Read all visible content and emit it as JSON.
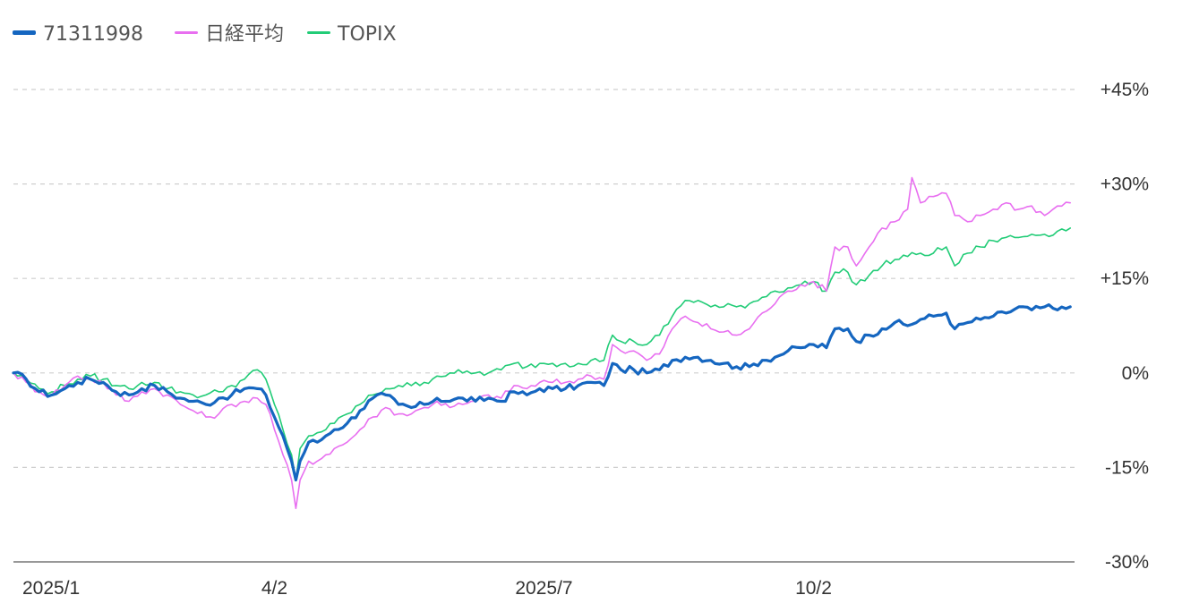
{
  "chart_data": {
    "type": "line",
    "title": "",
    "xlabel": "",
    "ylabel": "",
    "x_ticks": [
      {
        "label": "2025/1",
        "x": 0
      },
      {
        "label": "4/2",
        "x": 61
      },
      {
        "label": "2025/7",
        "x": 124
      },
      {
        "label": "10/2",
        "x": 187
      }
    ],
    "x_range": [
      0,
      248
    ],
    "y_ticks": [
      {
        "label": "+45%",
        "value": 45
      },
      {
        "label": "+30%",
        "value": 30
      },
      {
        "label": "+15%",
        "value": 15
      },
      {
        "label": "0%",
        "value": 0
      },
      {
        "label": "-15%",
        "value": -15
      },
      {
        "label": "-30%",
        "value": -30
      }
    ],
    "ylim": [
      -30,
      45
    ],
    "grid": true,
    "legend_position": "top-left",
    "series": [
      {
        "name": "71311998",
        "color": "#1566c0",
        "keypoints": [
          [
            0,
            0
          ],
          [
            3,
            -1
          ],
          [
            6,
            -3
          ],
          [
            9,
            -3.5
          ],
          [
            12,
            -2.5
          ],
          [
            15,
            -1.5
          ],
          [
            18,
            -1
          ],
          [
            21,
            -1.5
          ],
          [
            24,
            -3
          ],
          [
            27,
            -3.5
          ],
          [
            30,
            -2.5
          ],
          [
            33,
            -2
          ],
          [
            36,
            -3
          ],
          [
            39,
            -4
          ],
          [
            42,
            -4.5
          ],
          [
            45,
            -5
          ],
          [
            48,
            -4
          ],
          [
            51,
            -3.5
          ],
          [
            54,
            -2.5
          ],
          [
            57,
            -2.5
          ],
          [
            59,
            -3.5
          ],
          [
            61,
            -7
          ],
          [
            63,
            -10
          ],
          [
            65,
            -14
          ],
          [
            66,
            -17
          ],
          [
            67,
            -14
          ],
          [
            69,
            -11
          ],
          [
            71,
            -11
          ],
          [
            73,
            -10
          ],
          [
            75,
            -9
          ],
          [
            78,
            -8
          ],
          [
            81,
            -6
          ],
          [
            84,
            -4
          ],
          [
            87,
            -3.5
          ],
          [
            90,
            -5
          ],
          [
            93,
            -5.5
          ],
          [
            96,
            -5
          ],
          [
            99,
            -4
          ],
          [
            102,
            -4.5
          ],
          [
            105,
            -4
          ],
          [
            108,
            -4.5
          ],
          [
            111,
            -4
          ],
          [
            114,
            -4.5
          ],
          [
            117,
            -3
          ],
          [
            120,
            -3.5
          ],
          [
            123,
            -2.5
          ],
          [
            126,
            -2.5
          ],
          [
            129,
            -2.5
          ],
          [
            132,
            -2
          ],
          [
            135,
            -1.5
          ],
          [
            138,
            -2
          ],
          [
            140,
            1.5
          ],
          [
            142,
            0.5
          ],
          [
            145,
            0.5
          ],
          [
            148,
            0
          ],
          [
            151,
            0.5
          ],
          [
            154,
            2
          ],
          [
            157,
            2.5
          ],
          [
            160,
            2.5
          ],
          [
            163,
            2
          ],
          [
            166,
            1.5
          ],
          [
            169,
            1
          ],
          [
            172,
            1
          ],
          [
            175,
            2
          ],
          [
            178,
            2.5
          ],
          [
            181,
            3.5
          ],
          [
            184,
            4
          ],
          [
            187,
            4.5
          ],
          [
            190,
            4
          ],
          [
            192,
            7
          ],
          [
            195,
            7
          ],
          [
            197,
            5
          ],
          [
            200,
            6
          ],
          [
            203,
            7
          ],
          [
            206,
            8
          ],
          [
            209,
            7.5
          ],
          [
            212,
            8.5
          ],
          [
            215,
            9
          ],
          [
            218,
            9.5
          ],
          [
            220,
            7
          ],
          [
            223,
            8
          ],
          [
            226,
            8.5
          ],
          [
            229,
            9
          ],
          [
            232,
            9.5
          ],
          [
            235,
            10.5
          ],
          [
            238,
            10
          ],
          [
            241,
            10.5
          ],
          [
            244,
            10
          ],
          [
            247,
            10.5
          ]
        ]
      },
      {
        "name": "日経平均",
        "color": "#e86ff0",
        "keypoints": [
          [
            0,
            0
          ],
          [
            3,
            -1.5
          ],
          [
            6,
            -3
          ],
          [
            9,
            -3.5
          ],
          [
            12,
            -2
          ],
          [
            15,
            -0.5
          ],
          [
            18,
            -1
          ],
          [
            21,
            -1.5
          ],
          [
            24,
            -3.5
          ],
          [
            27,
            -4.5
          ],
          [
            30,
            -3
          ],
          [
            33,
            -2.5
          ],
          [
            36,
            -3.5
          ],
          [
            39,
            -5
          ],
          [
            42,
            -6
          ],
          [
            45,
            -7
          ],
          [
            48,
            -6.5
          ],
          [
            51,
            -5
          ],
          [
            54,
            -4.5
          ],
          [
            57,
            -4
          ],
          [
            59,
            -5
          ],
          [
            61,
            -9
          ],
          [
            63,
            -13
          ],
          [
            65,
            -17
          ],
          [
            66,
            -21.5
          ],
          [
            67,
            -17
          ],
          [
            69,
            -14
          ],
          [
            71,
            -14
          ],
          [
            73,
            -13
          ],
          [
            75,
            -12
          ],
          [
            78,
            -11
          ],
          [
            81,
            -9
          ],
          [
            84,
            -7
          ],
          [
            87,
            -5.5
          ],
          [
            90,
            -6.5
          ],
          [
            93,
            -6.5
          ],
          [
            96,
            -5.5
          ],
          [
            99,
            -4.5
          ],
          [
            102,
            -5.5
          ],
          [
            105,
            -5
          ],
          [
            108,
            -4.5
          ],
          [
            111,
            -3.5
          ],
          [
            114,
            -4
          ],
          [
            117,
            -2
          ],
          [
            120,
            -2.5
          ],
          [
            123,
            -1.5
          ],
          [
            126,
            -1.5
          ],
          [
            129,
            -1.5
          ],
          [
            132,
            -1
          ],
          [
            135,
            -0.5
          ],
          [
            138,
            -1
          ],
          [
            140,
            4.5
          ],
          [
            142,
            3.5
          ],
          [
            145,
            3.5
          ],
          [
            148,
            2
          ],
          [
            151,
            3
          ],
          [
            154,
            7
          ],
          [
            157,
            9
          ],
          [
            160,
            8
          ],
          [
            163,
            7
          ],
          [
            166,
            6.5
          ],
          [
            169,
            6
          ],
          [
            172,
            7
          ],
          [
            175,
            9.5
          ],
          [
            178,
            11
          ],
          [
            181,
            13
          ],
          [
            184,
            14
          ],
          [
            187,
            14.5
          ],
          [
            190,
            13
          ],
          [
            192,
            20
          ],
          [
            195,
            20
          ],
          [
            197,
            17
          ],
          [
            200,
            20
          ],
          [
            203,
            23
          ],
          [
            206,
            24
          ],
          [
            209,
            26
          ],
          [
            210,
            31
          ],
          [
            212,
            27
          ],
          [
            215,
            28
          ],
          [
            218,
            28.5
          ],
          [
            220,
            25
          ],
          [
            223,
            24
          ],
          [
            226,
            25
          ],
          [
            229,
            26
          ],
          [
            232,
            27
          ],
          [
            235,
            26
          ],
          [
            238,
            26.5
          ],
          [
            241,
            25
          ],
          [
            244,
            26.5
          ],
          [
            247,
            27
          ]
        ]
      },
      {
        "name": "TOPIX",
        "color": "#22cc77",
        "keypoints": [
          [
            0,
            0
          ],
          [
            3,
            -1
          ],
          [
            6,
            -2.5
          ],
          [
            9,
            -3
          ],
          [
            12,
            -2
          ],
          [
            15,
            -1
          ],
          [
            18,
            -0.5
          ],
          [
            21,
            -1
          ],
          [
            24,
            -2
          ],
          [
            27,
            -2.5
          ],
          [
            30,
            -1.5
          ],
          [
            33,
            -1.5
          ],
          [
            36,
            -2.5
          ],
          [
            39,
            -3
          ],
          [
            42,
            -3.5
          ],
          [
            45,
            -3.5
          ],
          [
            48,
            -3
          ],
          [
            51,
            -2
          ],
          [
            54,
            -1
          ],
          [
            57,
            0.5
          ],
          [
            59,
            -1
          ],
          [
            61,
            -5
          ],
          [
            63,
            -9
          ],
          [
            65,
            -13
          ],
          [
            66,
            -17
          ],
          [
            67,
            -12
          ],
          [
            69,
            -10
          ],
          [
            71,
            -9.5
          ],
          [
            73,
            -9
          ],
          [
            75,
            -8
          ],
          [
            78,
            -6.5
          ],
          [
            81,
            -5
          ],
          [
            84,
            -3.5
          ],
          [
            87,
            -2.5
          ],
          [
            90,
            -2
          ],
          [
            93,
            -2
          ],
          [
            96,
            -1.5
          ],
          [
            99,
            -0.5
          ],
          [
            102,
            0
          ],
          [
            105,
            0
          ],
          [
            108,
            0
          ],
          [
            111,
            0
          ],
          [
            114,
            0.5
          ],
          [
            117,
            1.5
          ],
          [
            120,
            1
          ],
          [
            123,
            1.5
          ],
          [
            126,
            1.5
          ],
          [
            129,
            1.5
          ],
          [
            132,
            1.5
          ],
          [
            135,
            2
          ],
          [
            138,
            2
          ],
          [
            140,
            6
          ],
          [
            142,
            5
          ],
          [
            145,
            5
          ],
          [
            148,
            4.5
          ],
          [
            151,
            6
          ],
          [
            154,
            9
          ],
          [
            157,
            11.5
          ],
          [
            160,
            11.5
          ],
          [
            163,
            10.5
          ],
          [
            166,
            10.5
          ],
          [
            169,
            10.5
          ],
          [
            172,
            11
          ],
          [
            175,
            12
          ],
          [
            178,
            13
          ],
          [
            181,
            13.5
          ],
          [
            184,
            14
          ],
          [
            187,
            14.5
          ],
          [
            190,
            13
          ],
          [
            192,
            16
          ],
          [
            195,
            16
          ],
          [
            197,
            14
          ],
          [
            200,
            15.5
          ],
          [
            203,
            17
          ],
          [
            206,
            18
          ],
          [
            209,
            18.5
          ],
          [
            212,
            19
          ],
          [
            215,
            19
          ],
          [
            218,
            20
          ],
          [
            220,
            17
          ],
          [
            223,
            19
          ],
          [
            226,
            20
          ],
          [
            229,
            21
          ],
          [
            232,
            21.5
          ],
          [
            235,
            21.5
          ],
          [
            238,
            22
          ],
          [
            241,
            22
          ],
          [
            244,
            22.5
          ],
          [
            247,
            23
          ]
        ]
      }
    ]
  }
}
